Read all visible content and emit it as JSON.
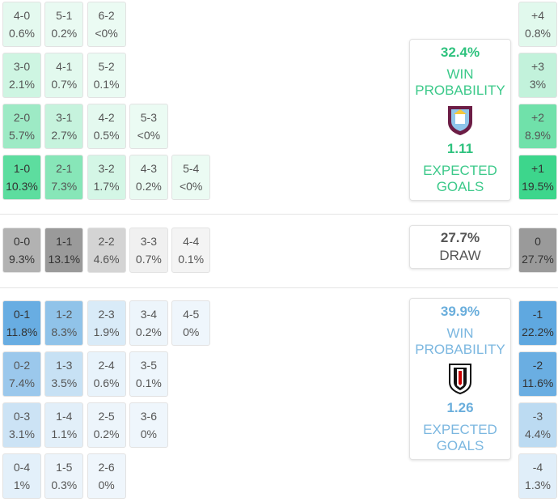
{
  "home": {
    "color": "#3dd68c",
    "text_color": "#2ec27e",
    "label_color": "#3cc98a",
    "rows": [
      [
        {
          "score": "4-0",
          "prob": "0.6%"
        },
        {
          "score": "5-1",
          "prob": "0.2%"
        },
        {
          "score": "6-2",
          "prob": "<0%"
        }
      ],
      [
        {
          "score": "3-0",
          "prob": "2.1%"
        },
        {
          "score": "4-1",
          "prob": "0.7%"
        },
        {
          "score": "5-2",
          "prob": "0.1%"
        }
      ],
      [
        {
          "score": "2-0",
          "prob": "5.7%"
        },
        {
          "score": "3-1",
          "prob": "2.7%"
        },
        {
          "score": "4-2",
          "prob": "0.5%"
        },
        {
          "score": "5-3",
          "prob": "<0%"
        }
      ],
      [
        {
          "score": "1-0",
          "prob": "10.3%"
        },
        {
          "score": "2-1",
          "prob": "7.3%"
        },
        {
          "score": "3-2",
          "prob": "1.7%"
        },
        {
          "score": "4-3",
          "prob": "0.2%"
        },
        {
          "score": "5-4",
          "prob": "<0%"
        }
      ]
    ],
    "margins": [
      {
        "label": "+4",
        "prob": "0.8%"
      },
      {
        "label": "+3",
        "prob": "3%"
      },
      {
        "label": "+2",
        "prob": "8.9%"
      },
      {
        "label": "+1",
        "prob": "19.5%"
      }
    ],
    "card": {
      "probability": "32.4%",
      "probability_label": "WIN PROBABILITY",
      "expected_goals": "1.11",
      "expected_goals_label": "EXPECTED GOALS"
    }
  },
  "draw": {
    "color": "#9a9a9a",
    "text_color": "#555555",
    "label_color": "#555555",
    "rows": [
      [
        {
          "score": "0-0",
          "prob": "9.3%"
        },
        {
          "score": "1-1",
          "prob": "13.1%"
        },
        {
          "score": "2-2",
          "prob": "4.6%"
        },
        {
          "score": "3-3",
          "prob": "0.7%"
        },
        {
          "score": "4-4",
          "prob": "0.1%"
        }
      ]
    ],
    "margins": [
      {
        "label": "0",
        "prob": "27.7%"
      }
    ],
    "card": {
      "probability": "27.7%",
      "probability_label": "DRAW"
    }
  },
  "away": {
    "color": "#5fa8e0",
    "text_color": "#6aaedc",
    "label_color": "#7bb7e0",
    "rows": [
      [
        {
          "score": "0-1",
          "prob": "11.8%"
        },
        {
          "score": "1-2",
          "prob": "8.3%"
        },
        {
          "score": "2-3",
          "prob": "1.9%"
        },
        {
          "score": "3-4",
          "prob": "0.2%"
        },
        {
          "score": "4-5",
          "prob": "0%"
        }
      ],
      [
        {
          "score": "0-2",
          "prob": "7.4%"
        },
        {
          "score": "1-3",
          "prob": "3.5%"
        },
        {
          "score": "2-4",
          "prob": "0.6%"
        },
        {
          "score": "3-5",
          "prob": "0.1%"
        }
      ],
      [
        {
          "score": "0-3",
          "prob": "3.1%"
        },
        {
          "score": "1-4",
          "prob": "1.1%"
        },
        {
          "score": "2-5",
          "prob": "0.2%"
        },
        {
          "score": "3-6",
          "prob": "0%"
        }
      ],
      [
        {
          "score": "0-4",
          "prob": "1%"
        },
        {
          "score": "1-5",
          "prob": "0.3%"
        },
        {
          "score": "2-6",
          "prob": "0%"
        }
      ]
    ],
    "margins": [
      {
        "label": "-1",
        "prob": "22.2%"
      },
      {
        "label": "-2",
        "prob": "11.6%"
      },
      {
        "label": "-3",
        "prob": "4.4%"
      },
      {
        "label": "-4",
        "prob": "1.3%"
      }
    ],
    "card": {
      "probability": "39.9%",
      "probability_label": "WIN PROBABILITY",
      "expected_goals": "1.26",
      "expected_goals_label": "EXPECTED GOALS"
    }
  }
}
